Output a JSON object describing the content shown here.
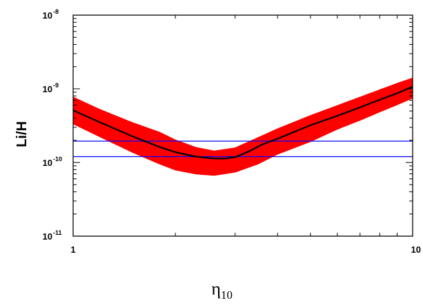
{
  "chart_data": {
    "type": "line",
    "title": "",
    "xlabel": "η",
    "xlabel_subscript": "10",
    "ylabel": "Li/H",
    "xscale": "log",
    "yscale": "log",
    "xlim": [
      1,
      10
    ],
    "ylim": [
      1e-11,
      1e-08
    ],
    "grid": false,
    "legend": "none",
    "xticks": [
      {
        "value": 1,
        "label": "1"
      },
      {
        "value": 10,
        "label": "10"
      }
    ],
    "yticks": [
      {
        "value": 1e-11,
        "base": "10",
        "exp": "-11"
      },
      {
        "value": 1e-10,
        "base": "10",
        "exp": "-10"
      },
      {
        "value": 1e-09,
        "base": "10",
        "exp": "-9"
      },
      {
        "value": 1e-08,
        "base": "10",
        "exp": "-8"
      }
    ],
    "band": {
      "color": "#ff0000",
      "x": [
        1.0,
        1.2,
        1.5,
        1.8,
        2.0,
        2.3,
        2.6,
        3.0,
        3.5,
        4.0,
        5.0,
        6.0,
        7.0,
        8.0,
        9.0,
        10.0
      ],
      "upper": [
        7.8e-10,
        5.3e-10,
        3.5e-10,
        2.6e-10,
        2.05e-10,
        1.62e-10,
        1.45e-10,
        1.6e-10,
        2.2e-10,
        2.9e-10,
        4.4e-10,
        6e-10,
        7.8e-10,
        9.8e-10,
        1.2e-09,
        1.42e-09
      ],
      "lower": [
        3.3e-10,
        2.2e-10,
        1.35e-10,
        9.4e-11,
        7.8e-11,
        6.9e-11,
        6.6e-11,
        7.3e-11,
        9.4e-11,
        1.28e-10,
        1.9e-10,
        2.8e-10,
        3.7e-10,
        4.8e-10,
        6e-10,
        7.4e-10
      ]
    },
    "series": [
      {
        "color": "#000000",
        "x": [
          1.0,
          1.2,
          1.5,
          1.8,
          2.0,
          2.3,
          2.6,
          2.8,
          3.0,
          3.3,
          3.6,
          4.0,
          5.0,
          6.0,
          7.0,
          8.0,
          9.0,
          10.0
        ],
        "y": [
          5.1e-10,
          3.5e-10,
          2.25e-10,
          1.62e-10,
          1.38e-10,
          1.2e-10,
          1.13e-10,
          1.13e-10,
          1.18e-10,
          1.42e-10,
          1.75e-10,
          2.1e-10,
          3.2e-10,
          4.3e-10,
          5.6e-10,
          7.1e-10,
          8.7e-10,
          1.07e-09
        ]
      }
    ],
    "hlines": [
      {
        "y": 1.95e-10,
        "color": "#0000ff"
      },
      {
        "y": 1.2e-10,
        "color": "#0000ff"
      }
    ]
  }
}
